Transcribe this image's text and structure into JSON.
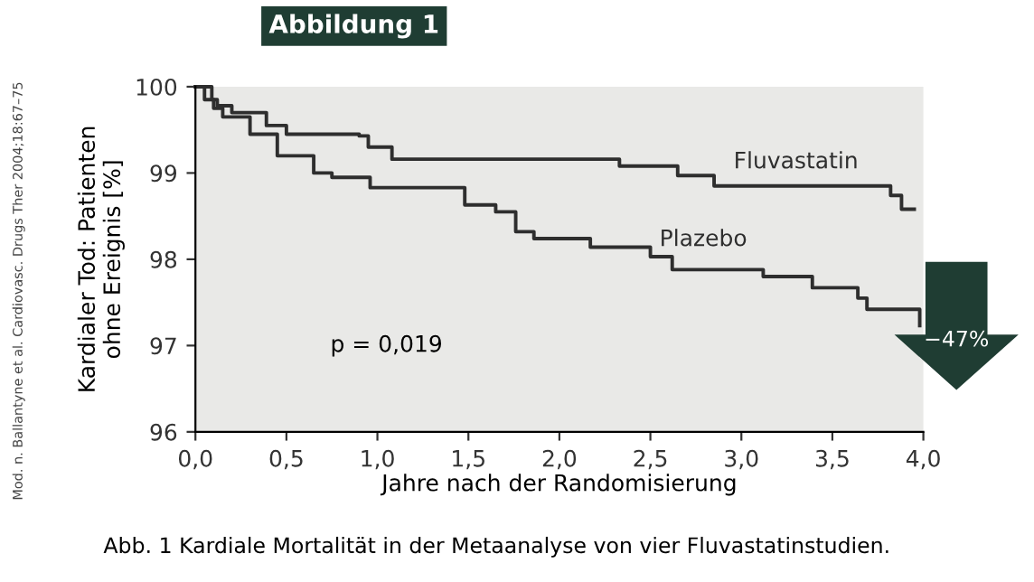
{
  "chart_data": {
    "type": "step",
    "title": "Abbildung 1",
    "xlabel": "Jahre nach der Randomisierung",
    "ylabel": "Kardialer Tod: Patienten\nohne Ereignis [%]",
    "xlim": [
      0,
      4.0
    ],
    "ylim": [
      96,
      100
    ],
    "xticks": [
      {
        "value": 0,
        "label": "0,0"
      },
      {
        "value": 0.5,
        "label": "0,5"
      },
      {
        "value": 1,
        "label": "1,0"
      },
      {
        "value": 1.5,
        "label": "1,5"
      },
      {
        "value": 2,
        "label": "2,0"
      },
      {
        "value": 2.5,
        "label": "2,5"
      },
      {
        "value": 3,
        "label": "3,0"
      },
      {
        "value": 3.5,
        "label": "3,5"
      },
      {
        "value": 4,
        "label": "4,0"
      }
    ],
    "yticks": [
      96,
      97,
      98,
      99,
      100
    ],
    "grid": false,
    "legend": false,
    "line_style": "solid",
    "marker": "none",
    "series": [
      {
        "name": "Fluvastatin",
        "color": "#2e2e2e",
        "x": [
          0,
          0.09,
          0.12,
          0.2,
          0.39,
          0.5,
          0.9,
          0.95,
          1.08,
          2.33,
          2.65,
          2.85,
          3.82,
          3.88,
          3.95
        ],
        "values": [
          100,
          99.85,
          99.78,
          99.7,
          99.55,
          99.45,
          99.43,
          99.3,
          99.16,
          99.08,
          98.97,
          98.85,
          98.74,
          98.58,
          98.58
        ]
      },
      {
        "name": "Plazebo",
        "color": "#2e2e2e",
        "x": [
          0,
          0.05,
          0.1,
          0.15,
          0.3,
          0.45,
          0.65,
          0.75,
          0.96,
          1.48,
          1.65,
          1.76,
          1.86,
          2.17,
          2.5,
          2.62,
          3.12,
          3.39,
          3.64,
          3.69,
          3.98
        ],
        "values": [
          100,
          99.85,
          99.75,
          99.65,
          99.45,
          99.2,
          99.0,
          98.95,
          98.83,
          98.63,
          98.55,
          98.32,
          98.24,
          98.14,
          98.03,
          97.88,
          97.8,
          97.67,
          97.55,
          97.42,
          97.23
        ]
      }
    ],
    "annotations": [
      "p = 0,019",
      "−47%",
      "Mod. n. Ballantyne et al. Cardiovasc. Drugs Ther 2004;18:67–75",
      "Abb. 1 Kardiale Mortalität in der Metaanalyse von vier Fluvastatinstudien."
    ]
  }
}
